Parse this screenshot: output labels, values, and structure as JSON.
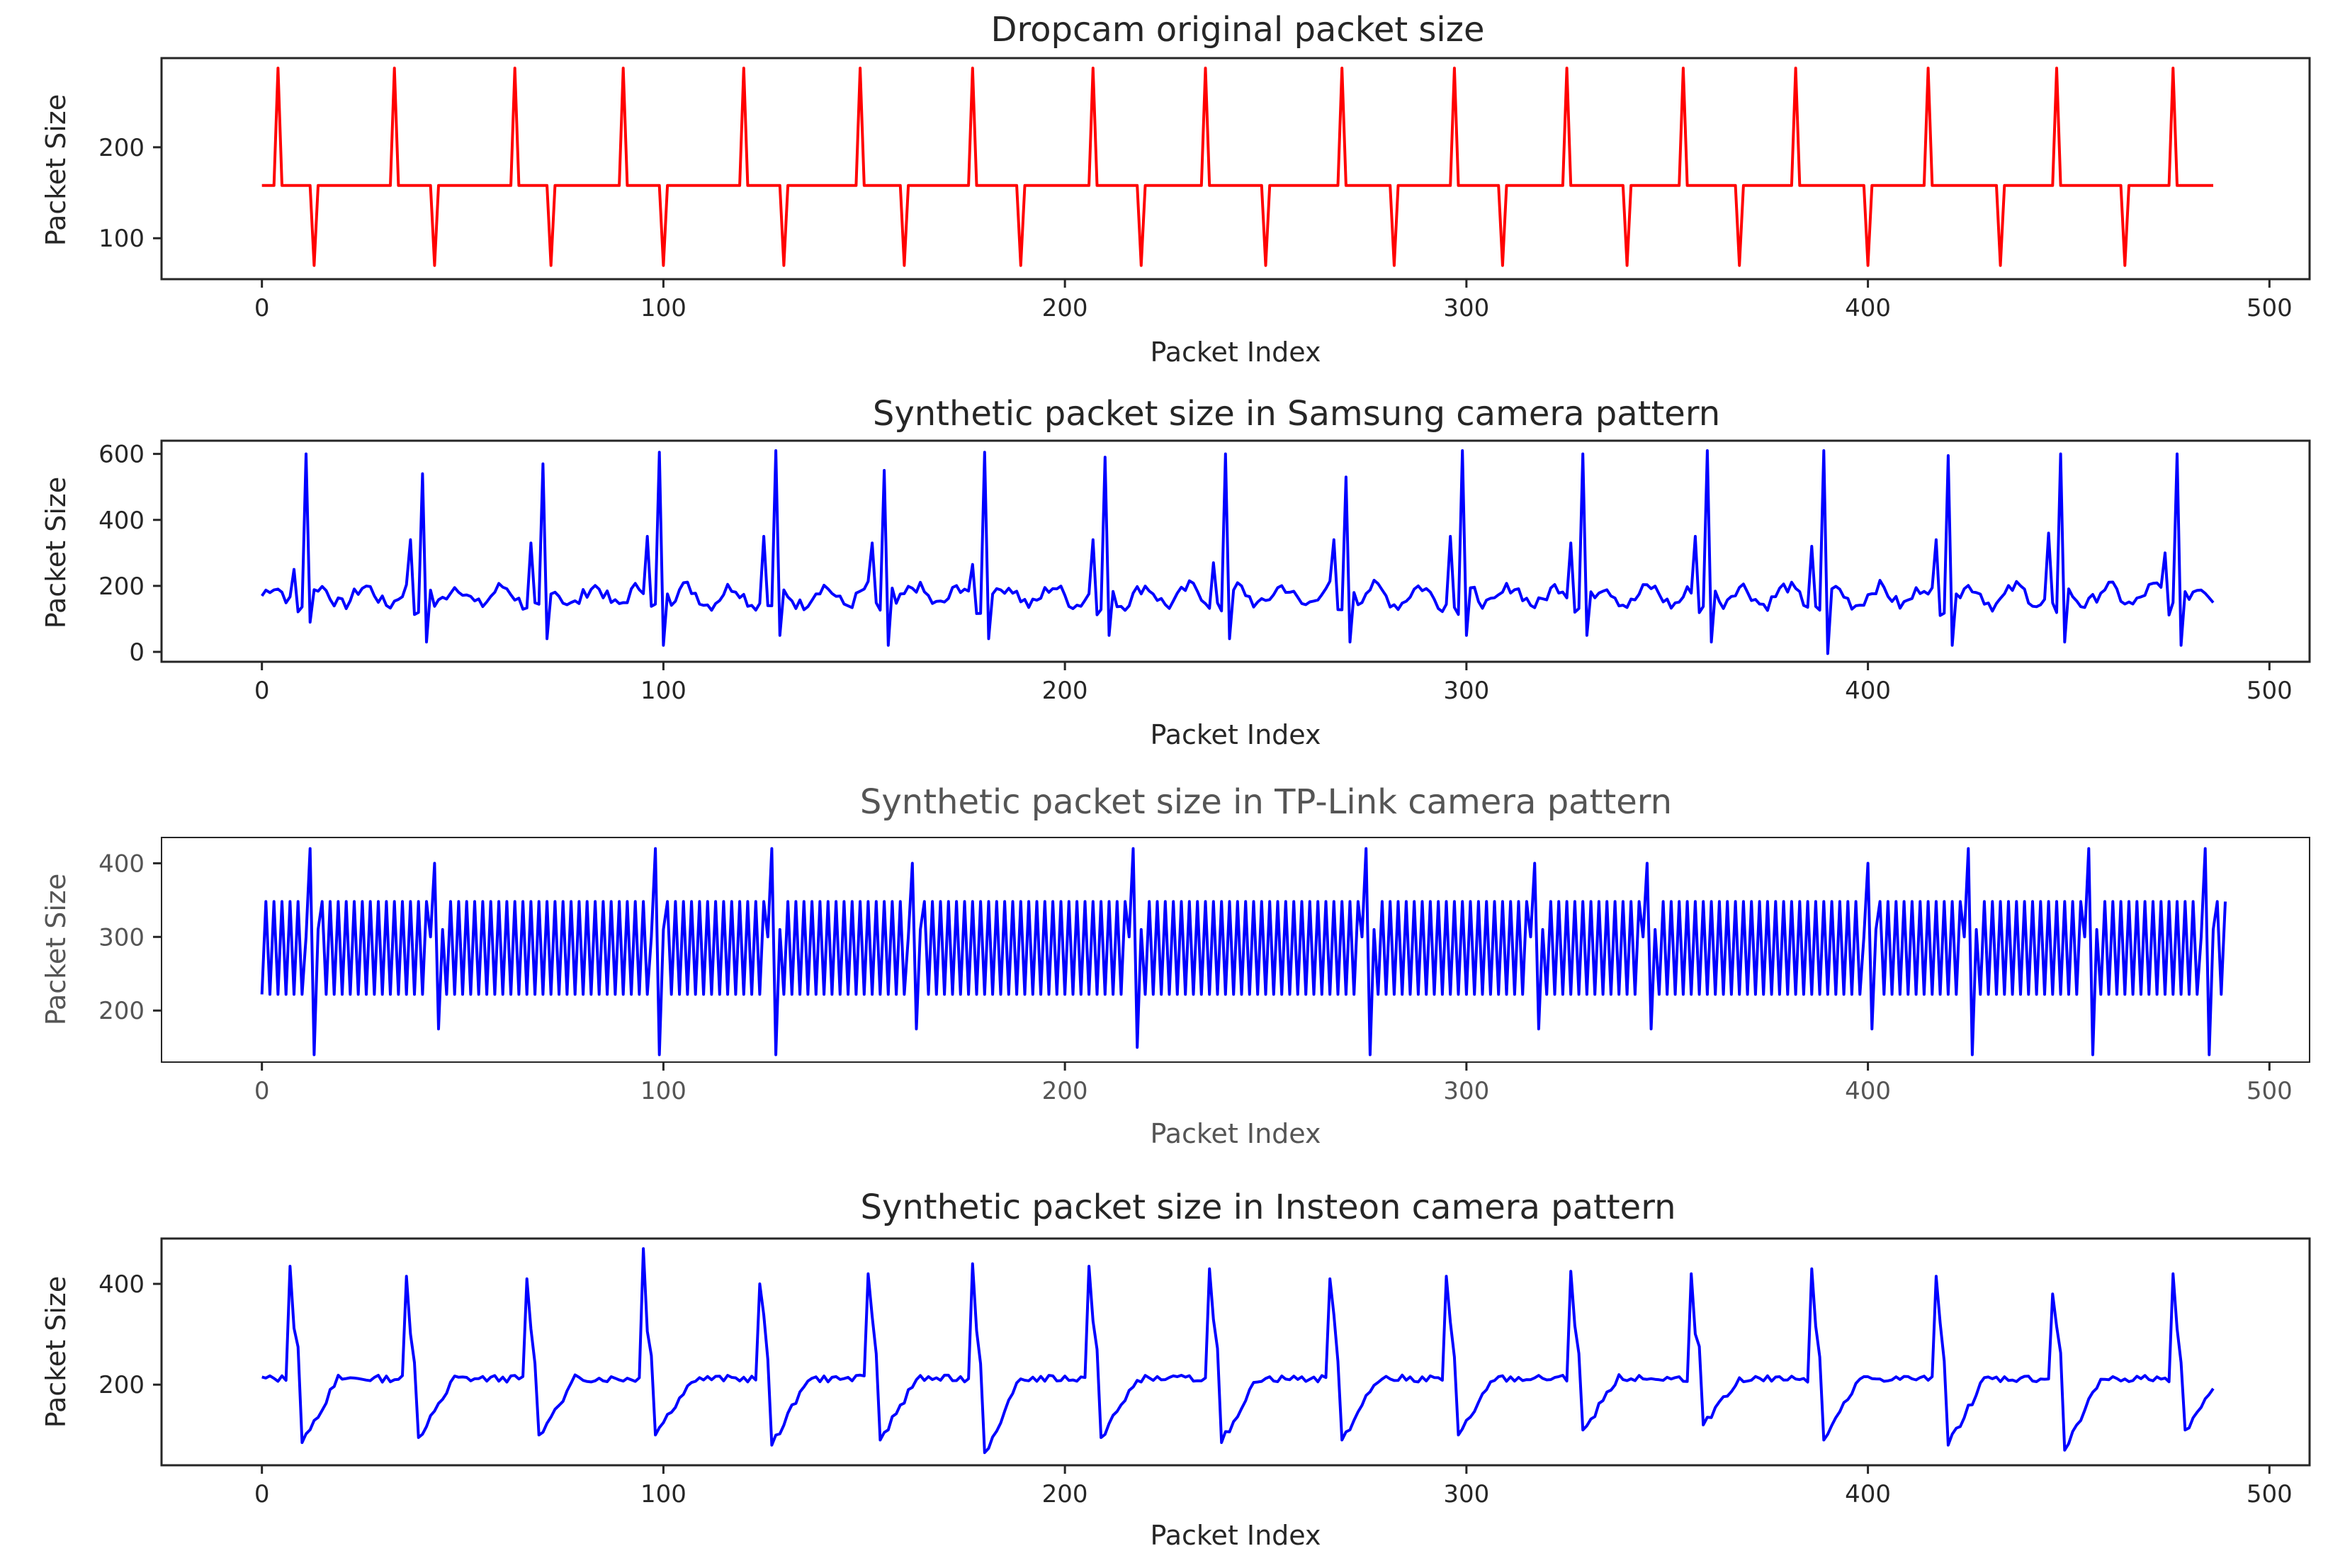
{
  "colors": {
    "original": "#ff0000",
    "synthetic": "#0000ff",
    "axes": "#262626"
  },
  "chart_data": [
    {
      "type": "line",
      "title": "Dropcam original packet size",
      "xlabel": "Packet Index",
      "ylabel": "Packet Size",
      "xlim": [
        -25,
        510
      ],
      "ylim": [
        55,
        298
      ],
      "xticks": [
        0,
        100,
        200,
        300,
        400,
        500
      ],
      "yticks": [
        100,
        200
      ],
      "grid": false,
      "color": "#ff0000",
      "series": [
        {
          "baseline": 158,
          "period_note": "",
          "x_end": 486,
          "peak_value": 287,
          "peak_x": [
            4,
            33,
            63,
            90,
            120,
            149,
            177,
            207,
            235,
            269,
            297,
            325,
            354,
            382,
            415,
            447,
            476
          ],
          "trough_value": 70,
          "trough_x": [
            13,
            43,
            72,
            100,
            130,
            160,
            189,
            219,
            250,
            282,
            309,
            340,
            368,
            400,
            433,
            464
          ]
        }
      ]
    },
    {
      "type": "line",
      "title": "Synthetic packet size in Samsung camera pattern",
      "xlabel": "Packet Index",
      "ylabel": "Packet Size",
      "xlim": [
        -25,
        510
      ],
      "ylim": [
        -30,
        640
      ],
      "xticks": [
        0,
        100,
        200,
        300,
        400,
        500
      ],
      "yticks": [
        0,
        200,
        400,
        600
      ],
      "grid": false,
      "color": "#0000ff",
      "series": [
        {
          "baseline": 170,
          "x_end": 486,
          "spike_x": [
            11,
            40,
            70,
            99,
            128,
            155,
            180,
            210,
            240,
            270,
            299,
            329,
            360,
            389,
            420,
            448,
            477
          ],
          "spike_values": [
            600,
            540,
            570,
            605,
            610,
            550,
            605,
            590,
            600,
            530,
            610,
            600,
            610,
            610,
            595,
            600,
            600
          ],
          "pre_spike_values": [
            250,
            340,
            330,
            350,
            350,
            330,
            265,
            340,
            270,
            340,
            350,
            330,
            350,
            320,
            340,
            360,
            300
          ],
          "trough_values": [
            90,
            30,
            40,
            20,
            50,
            20,
            40,
            50,
            40,
            30,
            50,
            50,
            30,
            -5,
            20,
            30,
            20
          ]
        }
      ]
    },
    {
      "type": "line",
      "title": "Synthetic packet size in TP-Link camera pattern",
      "xlabel": "Packet Index",
      "ylabel": "Packet Size",
      "xlim": [
        -25,
        510
      ],
      "ylim": [
        130,
        435
      ],
      "xticks": [
        0,
        100,
        200,
        300,
        400,
        500
      ],
      "yticks": [
        200,
        300,
        400
      ],
      "grid": false,
      "color": "#0000ff",
      "series": [
        {
          "oscillation_low": 222,
          "oscillation_high": 348,
          "x_end": 489,
          "spike_x": [
            12,
            43,
            98,
            127,
            162,
            217,
            275,
            317,
            345,
            400,
            425,
            455,
            484
          ],
          "spike_values": [
            420,
            400,
            420,
            420,
            400,
            420,
            420,
            400,
            400,
            400,
            420,
            420,
            420
          ],
          "dip_values": [
            140,
            175,
            140,
            140,
            175,
            150,
            140,
            175,
            175,
            175,
            140,
            140,
            140
          ]
        }
      ]
    },
    {
      "type": "line",
      "title": "Synthetic packet size in Insteon camera pattern",
      "xlabel": "Packet Index",
      "ylabel": "Packet Size",
      "xlim": [
        -25,
        510
      ],
      "ylim": [
        40,
        490
      ],
      "xticks": [
        0,
        100,
        200,
        300,
        400,
        500
      ],
      "yticks": [
        200,
        400
      ],
      "grid": false,
      "color": "#0000ff",
      "series": [
        {
          "baseline": 212,
          "x_end": 486,
          "spike_x": [
            7,
            36,
            66,
            95,
            124,
            151,
            177,
            206,
            236,
            266,
            295,
            326,
            356,
            386,
            417,
            446,
            476
          ],
          "spike_values": [
            435,
            415,
            410,
            470,
            400,
            420,
            440,
            435,
            430,
            410,
            415,
            425,
            420,
            430,
            415,
            380,
            420
          ],
          "trough_values": [
            85,
            95,
            100,
            100,
            80,
            90,
            65,
            95,
            85,
            90,
            100,
            110,
            120,
            90,
            80,
            70,
            110
          ]
        }
      ]
    }
  ]
}
